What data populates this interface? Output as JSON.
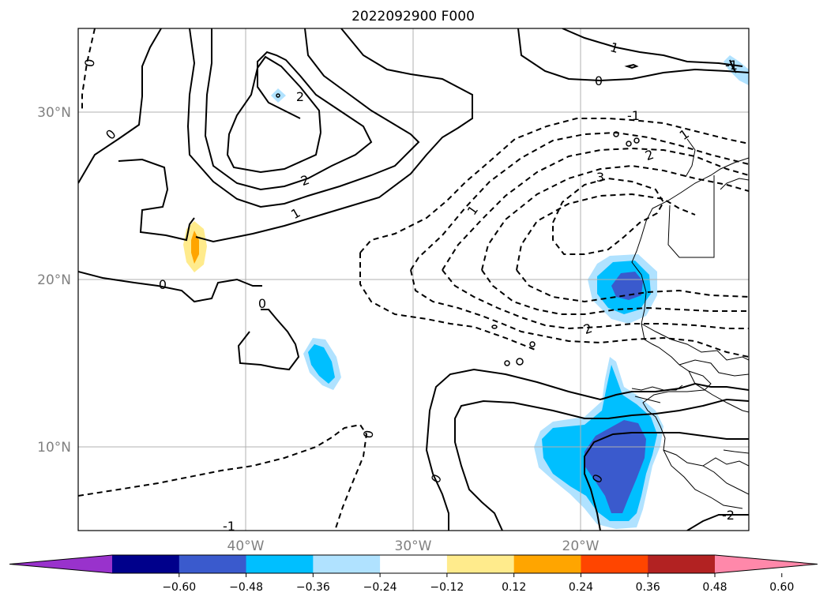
{
  "map": {
    "title": "2022092900 F000",
    "lat_ticks": [
      "30°N",
      "20°N",
      "10°N"
    ],
    "lon_ticks": [
      "40°W",
      "30°W",
      "20°W"
    ],
    "extent": {
      "lon_min": -50,
      "lon_max": -10,
      "lat_min": 5,
      "lat_max": 35
    },
    "gridlines": true,
    "contour_labels": [
      "0",
      "0",
      "2",
      "2",
      "1",
      "0",
      "0",
      "0",
      "-1",
      "1",
      "0",
      "0",
      "1",
      "-1",
      "1",
      "2",
      "3",
      "2",
      "-1",
      "0",
      "-2"
    ]
  },
  "colorbar": {
    "orientation": "horizontal",
    "extend": "both",
    "tick_labels": [
      "−0.60",
      "−0.48",
      "−0.36",
      "−0.24",
      "−0.12",
      "0.12",
      "0.24",
      "0.36",
      "0.48",
      "0.60"
    ],
    "levels": [
      -0.6,
      -0.48,
      -0.36,
      -0.24,
      -0.12,
      0.12,
      0.24,
      0.36,
      0.48,
      0.6
    ],
    "colors": [
      "#9932cc",
      "#00008b",
      "#3a5acd",
      "#00bfff",
      "#b0e2ff",
      "#ffffff",
      "#ffeb8c",
      "#ffa500",
      "#ff4500",
      "#b22222",
      "#ff88aa"
    ]
  }
}
